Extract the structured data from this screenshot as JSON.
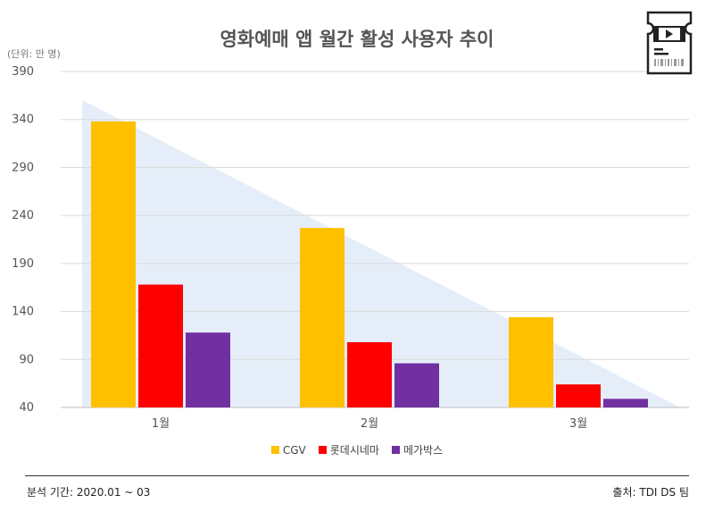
{
  "title": "영화예매 앱 월간 활성 사용자 추이",
  "unit_label": "(단위: 만 명)",
  "footer": {
    "period": "분석 기간: 2020.01 ~ 03",
    "source": "출처: TDI DS 팀"
  },
  "icons": {
    "ticket": "movie-ticket-icon"
  },
  "colors": {
    "CGV": "#FFC000",
    "롯데시네마": "#FF0000",
    "메가박스": "#7030A0",
    "gridline": "#d9d9d9",
    "triangle": "#dce8f5"
  },
  "chart_data": {
    "type": "bar",
    "title": "영화예매 앱 월간 활성 사용자 추이",
    "categories": [
      "1월",
      "2월",
      "3월"
    ],
    "series": [
      {
        "name": "CGV",
        "values": [
          338,
          227,
          134
        ]
      },
      {
        "name": "롯데시네마",
        "values": [
          168,
          108,
          64
        ]
      },
      {
        "name": "메가박스",
        "values": [
          118,
          86,
          49
        ]
      }
    ],
    "yticks": [
      "40",
      "90",
      "140",
      "190",
      "240",
      "290",
      "340",
      "390"
    ],
    "ylim": [
      40,
      390
    ],
    "grid": true,
    "legend": "bottom"
  }
}
